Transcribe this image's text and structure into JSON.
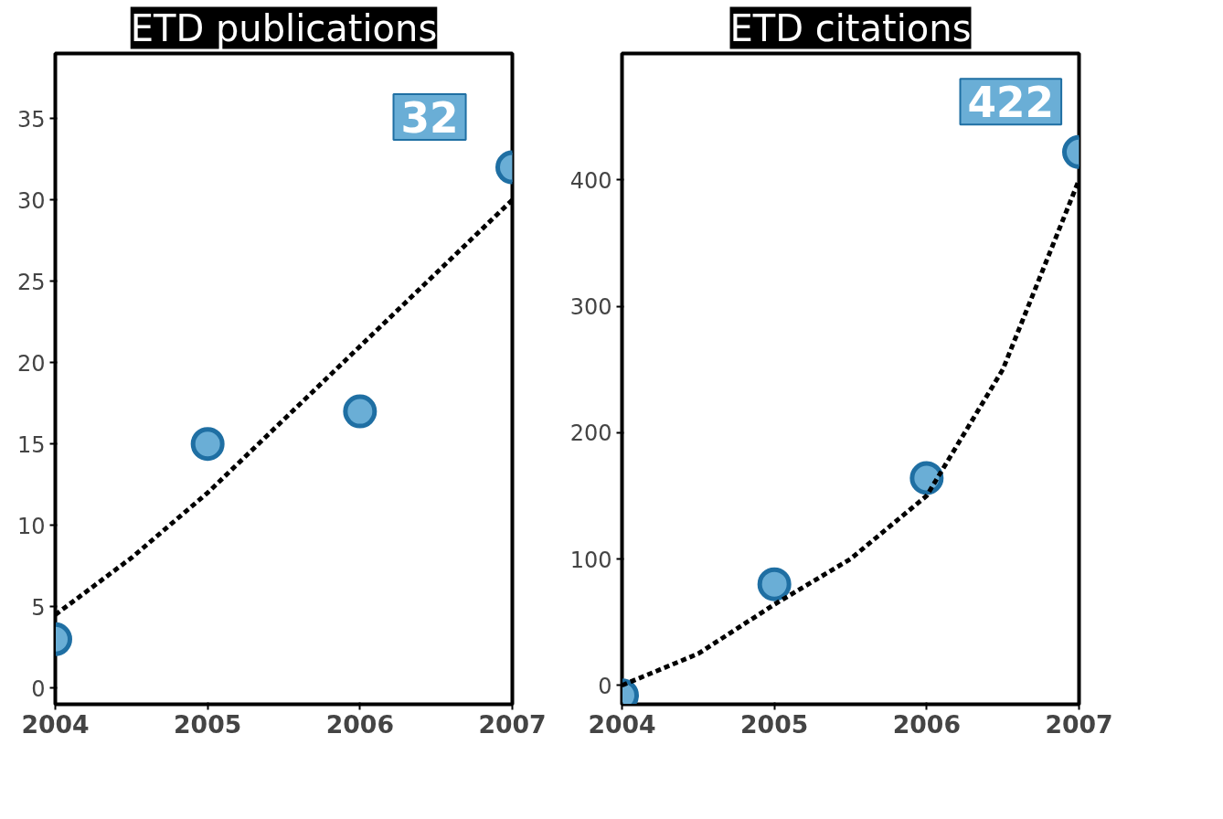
{
  "chart_data": [
    {
      "type": "scatter",
      "title": "ETD publications",
      "grid": false,
      "xlim": [
        2004,
        2007
      ],
      "xticks": [
        2004,
        2005,
        2006,
        2007
      ],
      "ylim": [
        -1,
        39
      ],
      "yticks": [
        0,
        5,
        10,
        15,
        20,
        25,
        30,
        35
      ],
      "series": [
        {
          "marker": "circle",
          "color": "#6aaed6",
          "x": [
            2004,
            2005,
            2006,
            2007
          ],
          "values": [
            3,
            15,
            17,
            32
          ],
          "value_labels": [
            null,
            null,
            null,
            "32"
          ]
        },
        {
          "type": "line",
          "line_style": "dashed",
          "color": "#000000",
          "x": [
            2004,
            2004.5,
            2005,
            2005.5,
            2006,
            2006.5,
            2007
          ],
          "values": [
            4.5,
            8,
            12,
            16.5,
            21,
            25.5,
            30
          ]
        }
      ]
    },
    {
      "type": "scatter",
      "title": "ETD citations",
      "grid": false,
      "xlim": [
        2004,
        2007
      ],
      "xticks": [
        2004,
        2005,
        2006,
        2007
      ],
      "ylim": [
        -15,
        500
      ],
      "yticks": [
        0,
        100,
        200,
        300,
        400
      ],
      "series": [
        {
          "marker": "circle",
          "color": "#6aaed6",
          "x": [
            2004,
            2005,
            2006,
            2007
          ],
          "values": [
            -8,
            80,
            164,
            422
          ],
          "value_labels": [
            null,
            null,
            null,
            "422"
          ]
        },
        {
          "type": "line",
          "line_style": "dashed",
          "color": "#000000",
          "x": [
            2004,
            2004.5,
            2005,
            2005.5,
            2006,
            2006.5,
            2007
          ],
          "values": [
            0,
            25,
            64,
            100,
            150,
            250,
            400
          ]
        }
      ]
    }
  ]
}
